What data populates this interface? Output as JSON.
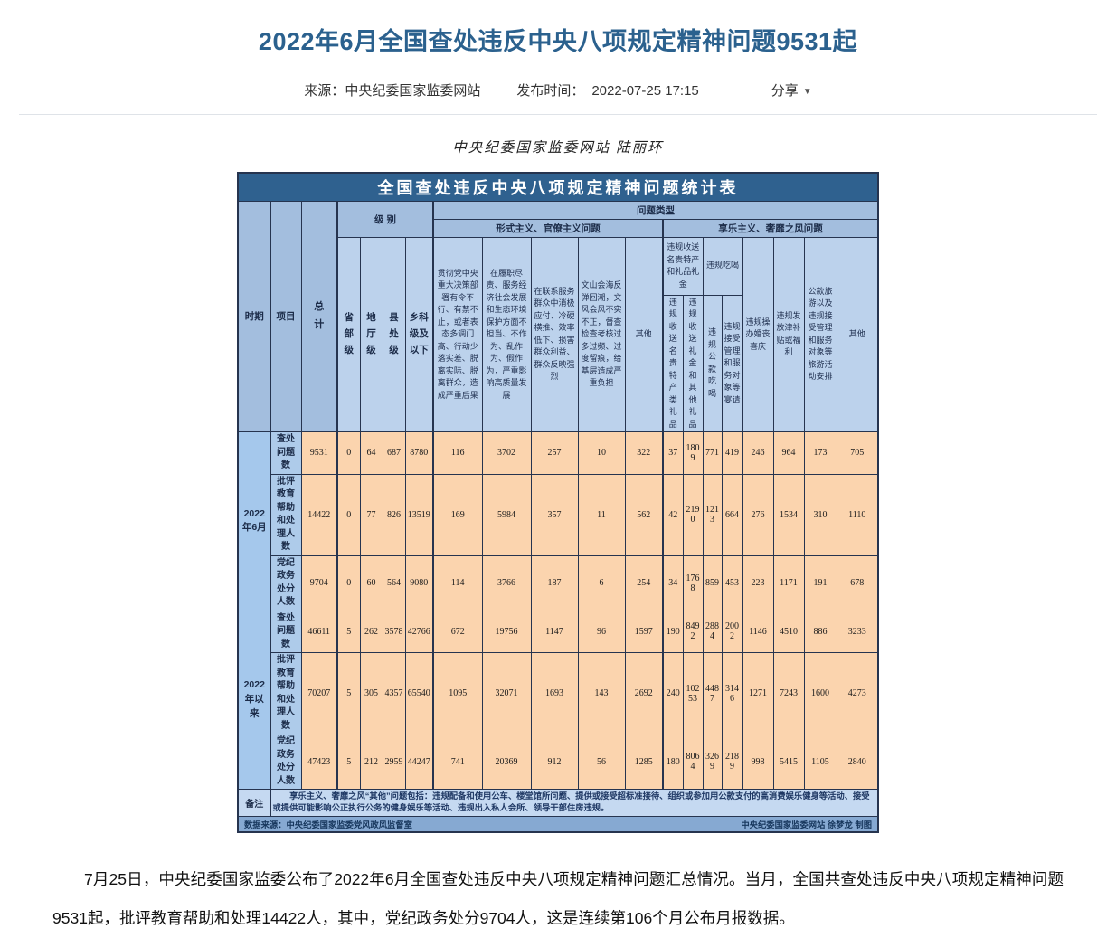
{
  "page": {
    "title": "2022年6月全国查处违反中央八项规定精神问题9531起",
    "meta": {
      "source_label": "来源：",
      "source": "中央纪委国家监委网站",
      "time_label": "发布时间：",
      "time": "2022-07-25 17:15",
      "share_label": "分享",
      "share_caret": "▼"
    },
    "byline": "中央纪委国家监委网站 陆丽环",
    "body_paragraph": "7月25日，中央纪委国家监委公布了2022年6月全国查处违反中央八项规定精神问题汇总情况。当月，全国共查处违反中央八项规定精神问题9531起，批评教育帮助和处理14422人，其中，党纪政务处分9704人，这是连续第106个月公布月报数据。"
  },
  "table": {
    "title": "全国查处违反中央八项规定精神问题统计表",
    "header": {
      "period": "时期",
      "item": "项目",
      "total": "总计",
      "level_group": "级 别",
      "levels": [
        "省部级",
        "地厅级",
        "县处级",
        "乡科级及以下"
      ],
      "problem_type_group": "问题类型",
      "formalism_group": "形式主义、官僚主义问题",
      "formalism_cols": [
        "贯彻党中央重大决策部署有令不行、有禁不止，或者表态多调门高、行动少落实差、脱离实际、脱离群众，造成严重后果",
        "在履职尽责、服务经济社会发展和生态环境保护方面不担当、不作为、乱作为、假作为，严重影响高质量发展",
        "在联系服务群众中消极应付、冷硬横推、效率低下、损害群众利益、群众反映强烈",
        "文山会海反弹回潮，文风会风不实不正，督查检查考核过多过频、过度留痕，给基层造成严重负担",
        "其他"
      ],
      "hedonism_group": "享乐主义、奢靡之风问题",
      "gift_group": "违规收送名贵特产和礼品礼金",
      "gift_cols": [
        "违规收送名贵特产类礼品",
        "违规收送礼金和其他礼品"
      ],
      "dining_group": "违规吃喝",
      "dining_cols": [
        "违规公款吃喝",
        "违规接受管理和服务对象等宴请"
      ],
      "hedonism_cols": [
        "违规操办婚丧喜庆",
        "违规发放津补贴或福利",
        "公款旅游以及违规接受管理和服务对象等旅游活动安排",
        "其他"
      ]
    },
    "row_groups": [
      {
        "period": "2022年6月",
        "rows": [
          {
            "label": "查处问题数",
            "values": [
              9531,
              0,
              64,
              687,
              8780,
              116,
              3702,
              257,
              10,
              322,
              37,
              1809,
              771,
              419,
              246,
              964,
              173,
              705
            ]
          },
          {
            "label": "批评教育帮助和处理人数",
            "values": [
              14422,
              0,
              77,
              826,
              13519,
              169,
              5984,
              357,
              11,
              562,
              42,
              2190,
              1213,
              664,
              276,
              1534,
              310,
              1110
            ]
          },
          {
            "label": "党纪政务处分人数",
            "values": [
              9704,
              0,
              60,
              564,
              9080,
              114,
              3766,
              187,
              6,
              254,
              34,
              1768,
              859,
              453,
              223,
              1171,
              191,
              678
            ]
          }
        ]
      },
      {
        "period": "2022年以来",
        "rows": [
          {
            "label": "查处问题数",
            "values": [
              46611,
              5,
              262,
              3578,
              42766,
              672,
              19756,
              1147,
              96,
              1597,
              190,
              8492,
              2884,
              2002,
              1146,
              4510,
              886,
              3233
            ]
          },
          {
            "label": "批评教育帮助和处理人数",
            "values": [
              70207,
              5,
              305,
              4357,
              65540,
              1095,
              32071,
              1693,
              143,
              2692,
              240,
              10253,
              4487,
              3146,
              1271,
              7243,
              1600,
              4273
            ]
          },
          {
            "label": "党纪政务处分人数",
            "values": [
              47423,
              5,
              212,
              2959,
              44247,
              741,
              20369,
              912,
              56,
              1285,
              180,
              8064,
              3269,
              2189,
              998,
              5415,
              1105,
              2840
            ]
          }
        ]
      }
    ],
    "remark_label": "备注",
    "remark": "享乐主义、奢靡之风“其他”问题包括：违规配备和使用公车、楼堂馆所问题、提供或接受超标准接待、组织或参加用公款支付的高消费娱乐健身等活动、接受或提供可能影响公正执行公务的健身娱乐等活动、违规出入私人会所、领导干部住房违规。",
    "source_left": "数据来源：中央纪委国家监委党风政风监督室",
    "source_right": "中央纪委国家监委网站 徐梦龙 制图"
  }
}
